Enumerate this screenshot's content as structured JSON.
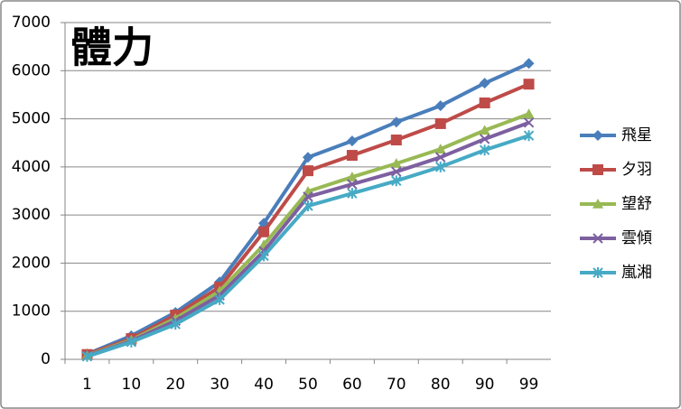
{
  "chart_data": {
    "type": "line",
    "title": "體力",
    "categories": [
      "1",
      "10",
      "20",
      "30",
      "40",
      "50",
      "60",
      "70",
      "80",
      "90",
      "99"
    ],
    "series": [
      {
        "name": "飛星",
        "color": "#4a7ebb",
        "marker": "diamond",
        "values": [
          110,
          490,
          975,
          1610,
          2830,
          4200,
          4540,
          4930,
          5270,
          5740,
          6150
        ]
      },
      {
        "name": "夕羽",
        "color": "#be4b48",
        "marker": "square",
        "values": [
          100,
          430,
          920,
          1500,
          2650,
          3920,
          4240,
          4560,
          4900,
          5330,
          5720
        ]
      },
      {
        "name": "望舒",
        "color": "#98b954",
        "marker": "triangle",
        "values": [
          80,
          400,
          850,
          1420,
          2380,
          3490,
          3790,
          4070,
          4370,
          4760,
          5100
        ]
      },
      {
        "name": "雲傾",
        "color": "#7d60a0",
        "marker": "x",
        "values": [
          70,
          380,
          800,
          1330,
          2250,
          3380,
          3640,
          3900,
          4200,
          4580,
          4920
        ]
      },
      {
        "name": "嵐湘",
        "color": "#46aac5",
        "marker": "asterisk",
        "values": [
          60,
          360,
          730,
          1240,
          2150,
          3190,
          3450,
          3710,
          4000,
          4350,
          4650
        ]
      }
    ],
    "ylim": [
      0,
      7000
    ],
    "yticks": [
      0,
      1000,
      2000,
      3000,
      4000,
      5000,
      6000,
      7000
    ],
    "grid": true,
    "legend": "right"
  }
}
